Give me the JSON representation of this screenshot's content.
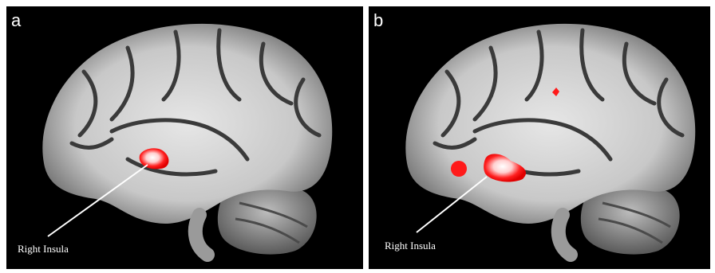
{
  "panels": [
    {
      "label": "a",
      "annotation": "Right Insula"
    },
    {
      "label": "b",
      "annotation": "Right Insula"
    }
  ]
}
